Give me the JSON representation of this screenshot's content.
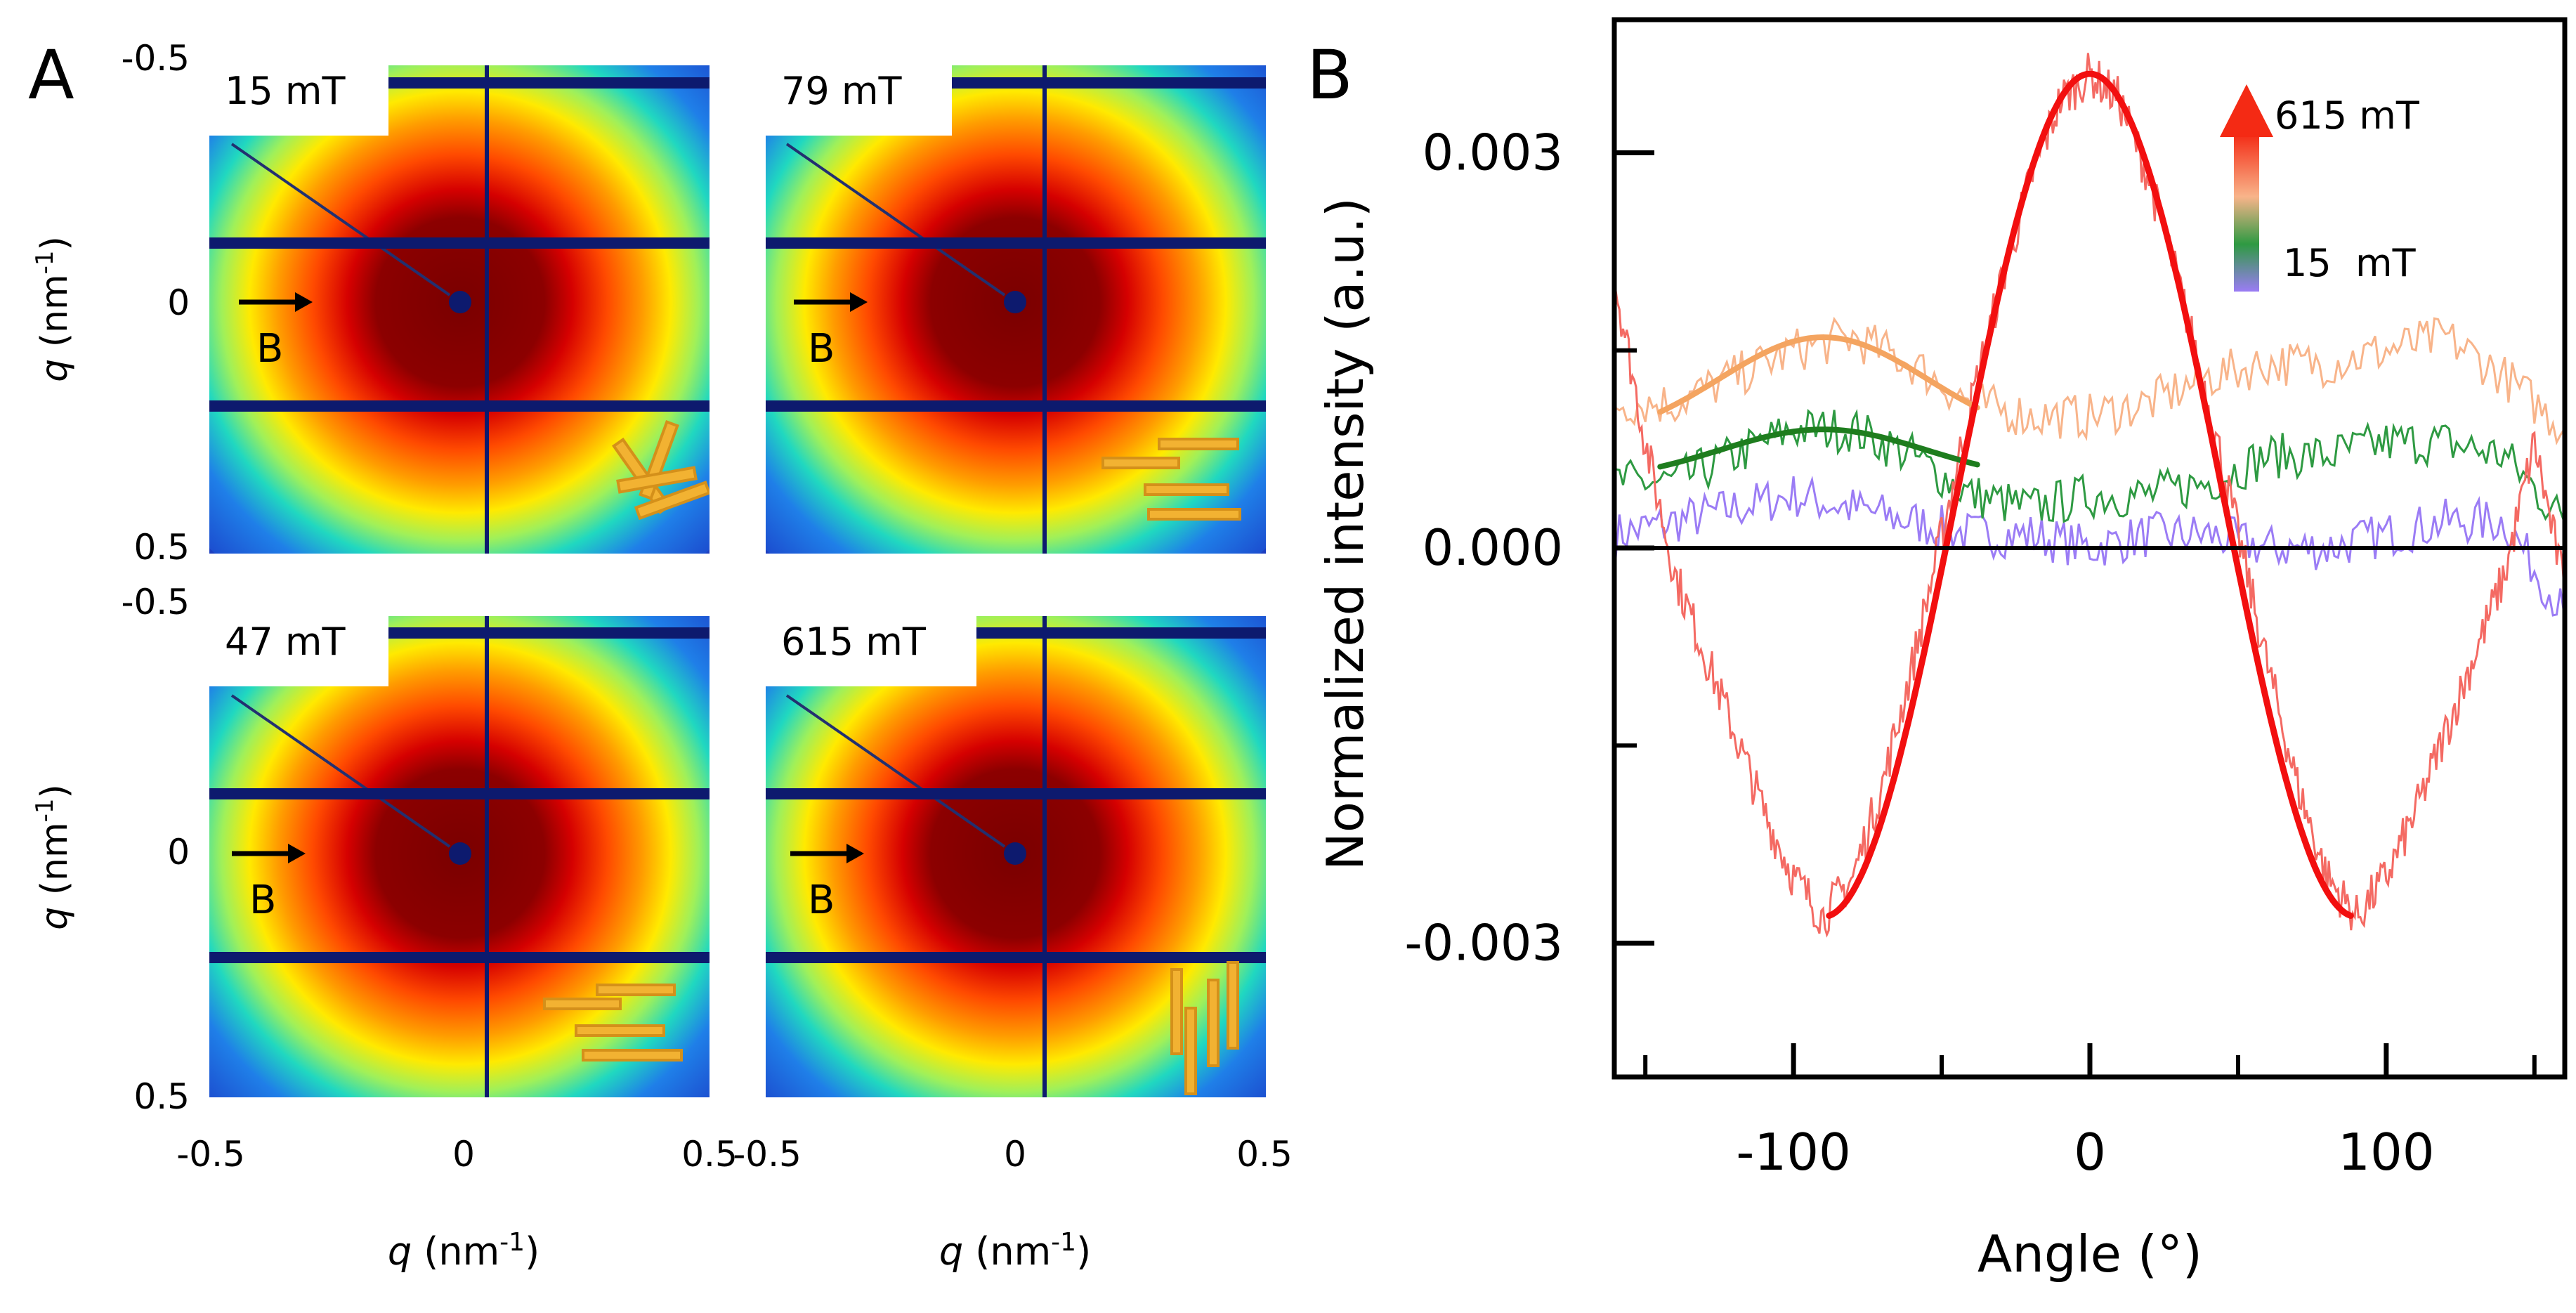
{
  "panel_a": {
    "letter": "A",
    "b_label": "B",
    "tick_labels": {
      "neg": "-0.5",
      "zero": "0",
      "pos": "0.5"
    },
    "q_symbol": "q",
    "q_unit_pre": " (nm",
    "q_unit_exp": "-1",
    "q_unit_post": ")",
    "panels": [
      {
        "field": "15 mT",
        "rods": "random"
      },
      {
        "field": "79 mT",
        "rods": "horizontal"
      },
      {
        "field": "47 mT",
        "rods": "horizontal"
      },
      {
        "field": "615 mT",
        "rods": "vertical"
      }
    ]
  },
  "panel_b": {
    "letter": "B",
    "legend": {
      "top": "615 mT",
      "bottom": "15  mT"
    }
  },
  "colors": {
    "frame": "#000000",
    "detector_bar": "#0d1a6e",
    "rod": "#f2b232",
    "rod_edge": "#d4901a",
    "s15": "#9b7cf5",
    "s47": "#2e9a42",
    "s79": "#f8b48a",
    "s615": "#f46a63",
    "fit47": "#1e7d1e",
    "fit79": "#f4a460",
    "fit615": "#f20f0f"
  },
  "chart_data": {
    "type": "line",
    "title": "",
    "xlabel": "Angle (°)",
    "ylabel": "Normalized intensity (a.u.)",
    "xlim": [
      -160,
      160
    ],
    "ylim": [
      -0.004,
      0.004
    ],
    "x_ticks": [
      -100,
      0,
      100
    ],
    "y_ticks": [
      "0.003",
      "0.000",
      "-0.003"
    ],
    "y_tick_values": [
      0.003,
      0.0,
      -0.003
    ],
    "series": [
      {
        "name": "15 mT",
        "kind": "data",
        "x": [
          -160,
          -140,
          -120,
          -100,
          -80,
          -60,
          -40,
          -20,
          0,
          20,
          40,
          60,
          80,
          100,
          120,
          140,
          160
        ],
        "y": [
          0.0001,
          0.0002,
          0.0003,
          0.0004,
          0.0003,
          0.0002,
          0.0001,
          0.0001,
          0.0,
          0.0001,
          0.0001,
          0.0,
          0.0,
          0.0001,
          0.0002,
          0.0002,
          -0.0005
        ]
      },
      {
        "name": "47 mT",
        "kind": "data",
        "x": [
          -160,
          -140,
          -120,
          -100,
          -80,
          -60,
          -40,
          -20,
          0,
          20,
          40,
          60,
          80,
          100,
          120,
          140,
          160
        ],
        "y": [
          0.0005,
          0.0005,
          0.0007,
          0.0009,
          0.0009,
          0.0007,
          0.0004,
          0.0003,
          0.0004,
          0.0004,
          0.0005,
          0.0007,
          0.0007,
          0.0008,
          0.0008,
          0.0007,
          0.0002
        ]
      },
      {
        "name": "79 mT",
        "kind": "data",
        "x": [
          -160,
          -140,
          -120,
          -100,
          -80,
          -60,
          -40,
          -20,
          0,
          20,
          40,
          60,
          80,
          100,
          120,
          140,
          160
        ],
        "y": [
          0.0011,
          0.0011,
          0.0013,
          0.0015,
          0.0016,
          0.0014,
          0.0011,
          0.001,
          0.001,
          0.0011,
          0.0013,
          0.0014,
          0.0014,
          0.0015,
          0.0016,
          0.0013,
          0.0009
        ]
      },
      {
        "name": "615 mT",
        "kind": "data",
        "x": [
          -160,
          -150,
          -140,
          -130,
          -120,
          -110,
          -100,
          -90,
          -80,
          -70,
          -60,
          -50,
          -40,
          -30,
          -20,
          -10,
          0,
          10,
          20,
          30,
          40,
          50,
          60,
          70,
          80,
          90,
          100,
          110,
          120,
          130,
          140,
          150,
          160
        ],
        "y": [
          0.002,
          0.0008,
          -0.0002,
          -0.0008,
          -0.0014,
          -0.002,
          -0.0025,
          -0.0028,
          -0.0025,
          -0.0018,
          -0.0009,
          0.0001,
          0.0011,
          0.002,
          0.0028,
          0.0034,
          0.0036,
          0.0034,
          0.0028,
          0.002,
          0.0011,
          0.0001,
          -0.0009,
          -0.0018,
          -0.0025,
          -0.0028,
          -0.0025,
          -0.002,
          -0.0014,
          -0.0008,
          -0.0002,
          0.0008,
          -0.0003
        ]
      },
      {
        "name": "47 mT fit",
        "kind": "fit",
        "x0": -90,
        "sigma": 35,
        "amp": 0.0004,
        "base": 0.0005,
        "xrange": [
          -145,
          -38
        ]
      },
      {
        "name": "79 mT fit",
        "kind": "fit",
        "x0": -90,
        "sigma": 35,
        "amp": 0.0008,
        "base": 0.0008,
        "xrange": [
          -145,
          -38
        ]
      },
      {
        "name": "615 mT fit",
        "kind": "cos2",
        "amp": 0.0032,
        "base": 0.0004,
        "xrange": [
          -88,
          88
        ]
      }
    ]
  }
}
